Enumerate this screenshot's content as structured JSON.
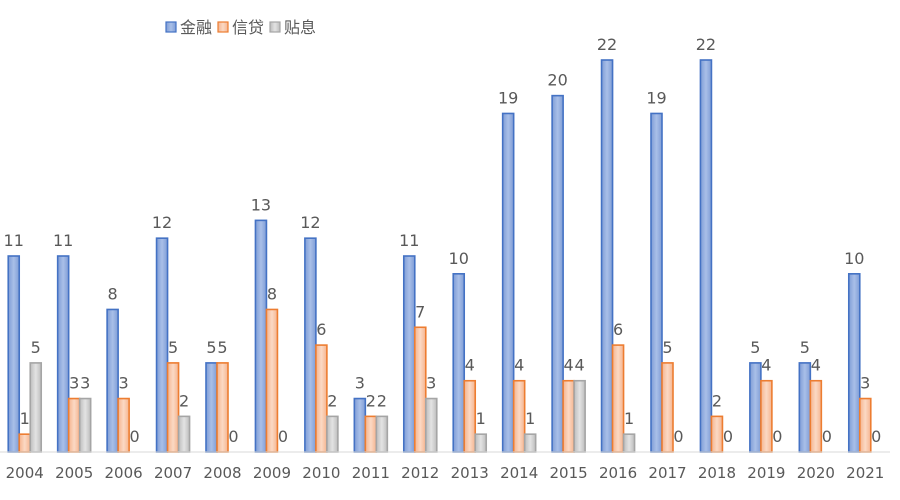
{
  "chart_data": {
    "type": "bar",
    "title": "",
    "xlabel": "",
    "ylabel": "",
    "legend_position": "top-left",
    "grid": false,
    "ylim": [
      0,
      22
    ],
    "categories": [
      "2004",
      "2005",
      "2006",
      "2007",
      "2008",
      "2009",
      "2010",
      "2011",
      "2012",
      "2013",
      "2014",
      "2015",
      "2016",
      "2017",
      "2018",
      "2019",
      "2020",
      "2021"
    ],
    "series": [
      {
        "name": "金融",
        "color": "#8EA9DB",
        "stroke": "#4472C4",
        "values": [
          11,
          11,
          8,
          12,
          5,
          13,
          12,
          3,
          11,
          10,
          19,
          20,
          22,
          19,
          22,
          5,
          5,
          10
        ]
      },
      {
        "name": "信贷",
        "color": "#F8CBAD",
        "stroke": "#ED7D31",
        "values": [
          1,
          3,
          3,
          5,
          5,
          8,
          6,
          2,
          7,
          4,
          4,
          4,
          6,
          5,
          2,
          4,
          4,
          3
        ]
      },
      {
        "name": "贴息",
        "color": "#D0D0D0",
        "stroke": "#A5A5A5",
        "values": [
          5,
          3,
          0,
          2,
          0,
          0,
          2,
          2,
          3,
          1,
          1,
          4,
          1,
          0,
          0,
          0,
          0,
          0
        ]
      }
    ]
  }
}
